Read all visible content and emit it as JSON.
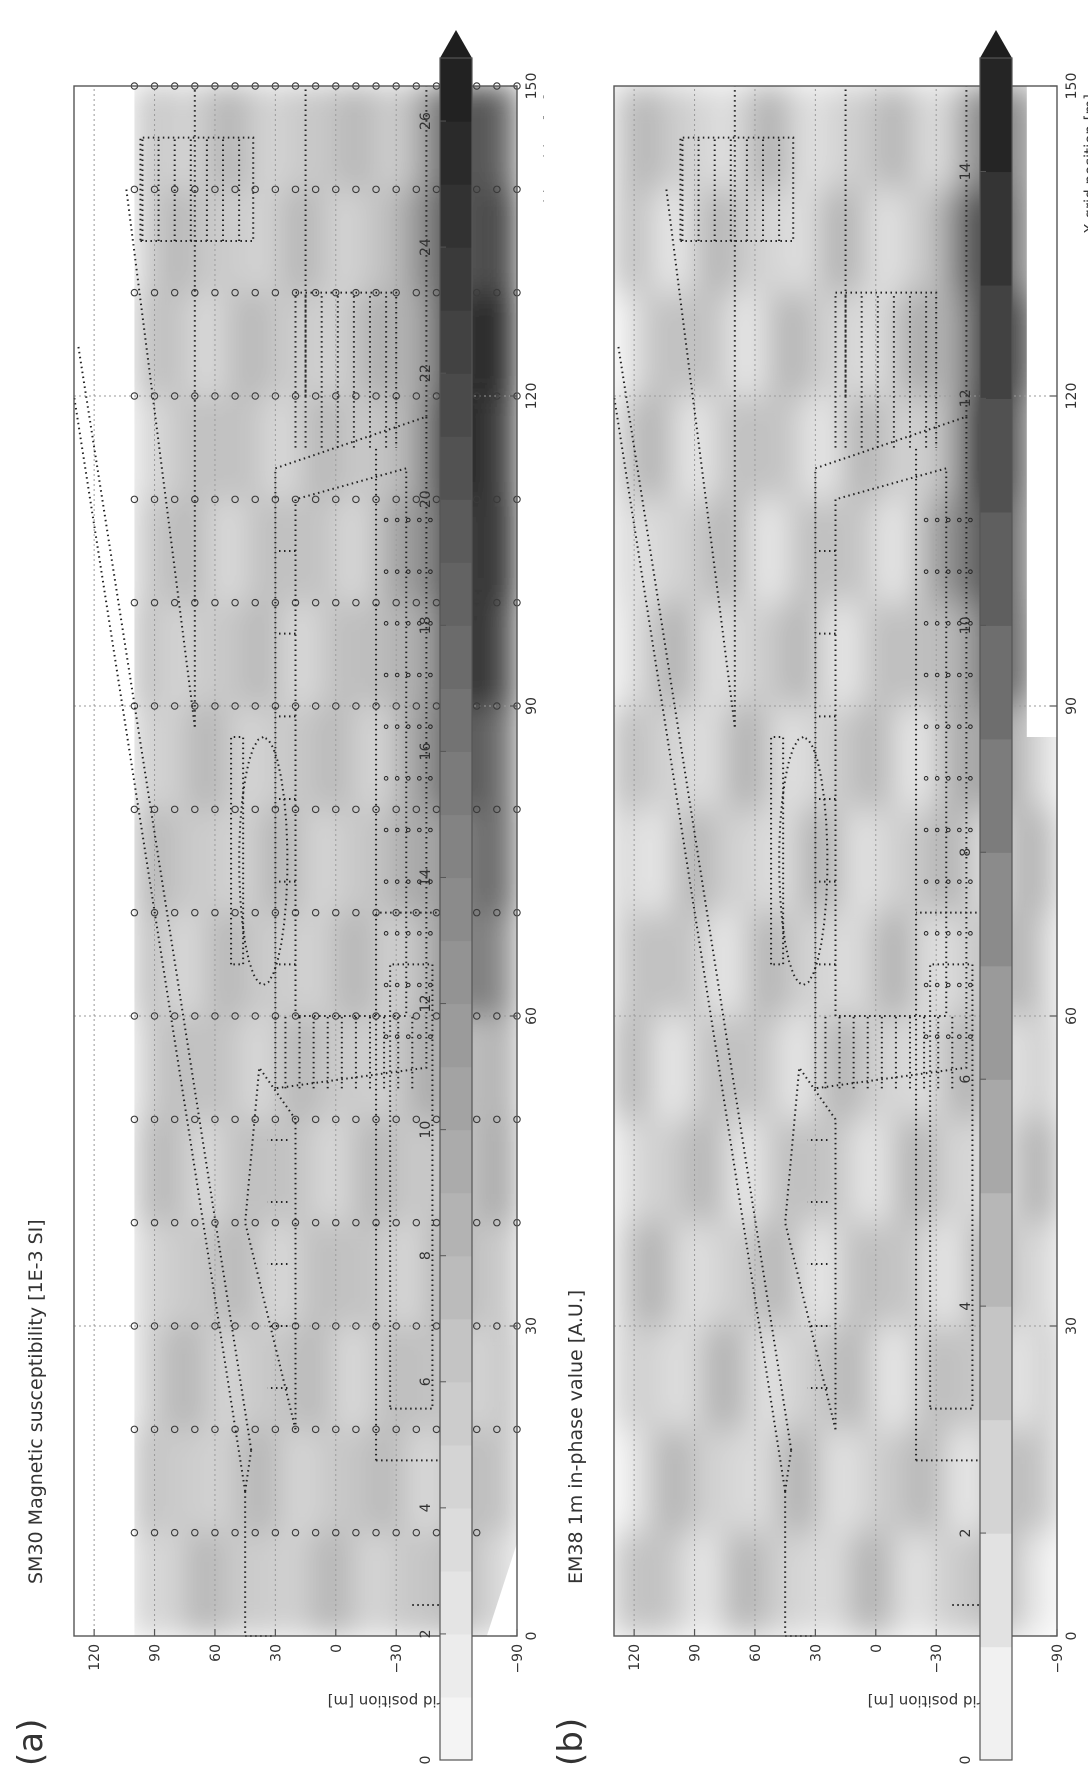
{
  "figure": {
    "panels": [
      {
        "letter": "(a)",
        "title": "SM30 Magnetic susceptibility [1E-3 SI]"
      },
      {
        "letter": "(b)",
        "title": "EM38 1m in-phase value [A.U.]"
      }
    ]
  },
  "colors": {
    "frame": "#555555",
    "grid": "#9a9a9a",
    "outline": "#222222",
    "marker": "#3a3a3a"
  },
  "chart_data": [
    {
      "type": "heatmap",
      "panel": "(a)",
      "title": "SM30 Magnetic susceptibility [1E-3 SI]",
      "xlabel": "X grid position [m]",
      "ylabel": "Y grid position [m]",
      "xlim": [
        0,
        150
      ],
      "ylim": [
        -90,
        130
      ],
      "xticks": [
        0,
        30,
        60,
        90,
        120,
        150
      ],
      "yticks": [
        120,
        90,
        60,
        30,
        0,
        -30,
        -60,
        -90
      ],
      "grid": true,
      "colorbar": {
        "min": 0,
        "max": 27,
        "extend": "max",
        "ticks": [
          0,
          2,
          4,
          6,
          8,
          10,
          12,
          14,
          16,
          18,
          20,
          22,
          24,
          26
        ],
        "colormap": "greys"
      },
      "data_extent": {
        "x": [
          0,
          150
        ],
        "y": [
          -90,
          100
        ]
      },
      "samples": {
        "marker": "circle",
        "x_spacing": 10,
        "y_spacing": 10,
        "x_range": [
          10,
          150
        ],
        "y_range": [
          -90,
          100
        ]
      },
      "field": {
        "background": 6,
        "high_zone": {
          "x": [
            60,
            150
          ],
          "y": [
            -90,
            -45
          ],
          "peak": 24,
          "peak_at": [
            115,
            -70
          ]
        }
      }
    },
    {
      "type": "heatmap",
      "panel": "(b)",
      "title": "EM38 1m in-phase value [A.U.]",
      "xlabel": "X grid position [m]",
      "ylabel": "Y grid position [m]",
      "xlim": [
        0,
        150
      ],
      "ylim": [
        -90,
        130
      ],
      "xticks": [
        0,
        30,
        60,
        90,
        120,
        150
      ],
      "yticks": [
        120,
        90,
        60,
        30,
        0,
        -30,
        -60,
        -90
      ],
      "grid": true,
      "colorbar": {
        "min": 0,
        "max": 15,
        "extend": "max",
        "ticks": [
          0,
          2,
          4,
          6,
          8,
          10,
          12,
          14
        ],
        "colormap": "greys"
      },
      "data_extent": {
        "x": [
          0,
          150
        ],
        "y": [
          -90,
          130
        ]
      },
      "missing_region": {
        "x": [
          87,
          150
        ],
        "y": [
          -90,
          -75
        ]
      },
      "field": {
        "background": 3,
        "high_zone": {
          "x": [
            85,
            145
          ],
          "y": [
            -75,
            -40
          ],
          "peak": 12,
          "peak_at": [
            120,
            -60
          ]
        }
      }
    }
  ]
}
